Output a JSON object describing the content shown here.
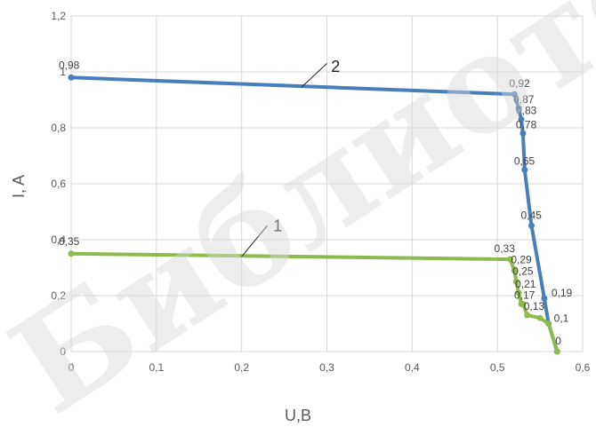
{
  "chart_data": {
    "type": "line",
    "xlabel": "U,B",
    "ylabel": "I, A",
    "xlim": [
      0,
      0.6
    ],
    "ylim": [
      0,
      1.2
    ],
    "x_ticks": [
      "0",
      "0,1",
      "0,2",
      "0,3",
      "0,4",
      "0,5",
      "0,6"
    ],
    "y_ticks": [
      "0",
      "0,2",
      "0,4",
      "0,6",
      "0,8",
      "1",
      "1,2"
    ],
    "grid": true,
    "legend": "none",
    "series": [
      {
        "curve_label": "2",
        "color": "#4a7ebb",
        "points": [
          {
            "x": 0,
            "y": 0.98,
            "label": "0,98"
          },
          {
            "x": 0.52,
            "y": 0.92,
            "label": "0,92"
          },
          {
            "x": 0.525,
            "y": 0.87,
            "label": "0,87"
          },
          {
            "x": 0.528,
            "y": 0.83,
            "label": "0,83"
          },
          {
            "x": 0.53,
            "y": 0.78,
            "label": "0,78"
          },
          {
            "x": 0.532,
            "y": 0.65,
            "label": "0,65"
          },
          {
            "x": 0.54,
            "y": 0.45,
            "label": "0,45"
          },
          {
            "x": 0.555,
            "y": 0.19,
            "label": "0,19"
          },
          {
            "x": 0.56,
            "y": 0.1,
            "label": "0,1"
          },
          {
            "x": 0.57,
            "y": 0,
            "label": "0"
          }
        ]
      },
      {
        "curve_label": "1",
        "color": "#8dbb4e",
        "points": [
          {
            "x": 0,
            "y": 0.35,
            "label": "0,35"
          },
          {
            "x": 0.515,
            "y": 0.33,
            "label": "0,33"
          },
          {
            "x": 0.52,
            "y": 0.29,
            "label": "0,29"
          },
          {
            "x": 0.522,
            "y": 0.25,
            "label": "0,25"
          },
          {
            "x": 0.525,
            "y": 0.21,
            "label": "0,21"
          },
          {
            "x": 0.528,
            "y": 0.17,
            "label": "0,17"
          },
          {
            "x": 0.53,
            "y": 0.17,
            "label": ""
          },
          {
            "x": 0.535,
            "y": 0.13,
            "label": "0,13"
          },
          {
            "x": 0.55,
            "y": 0.12,
            "label": ""
          },
          {
            "x": 0.56,
            "y": 0.1,
            "label": ""
          },
          {
            "x": 0.57,
            "y": 0,
            "label": ""
          }
        ]
      }
    ],
    "watermark": "Библиотека БГ"
  }
}
